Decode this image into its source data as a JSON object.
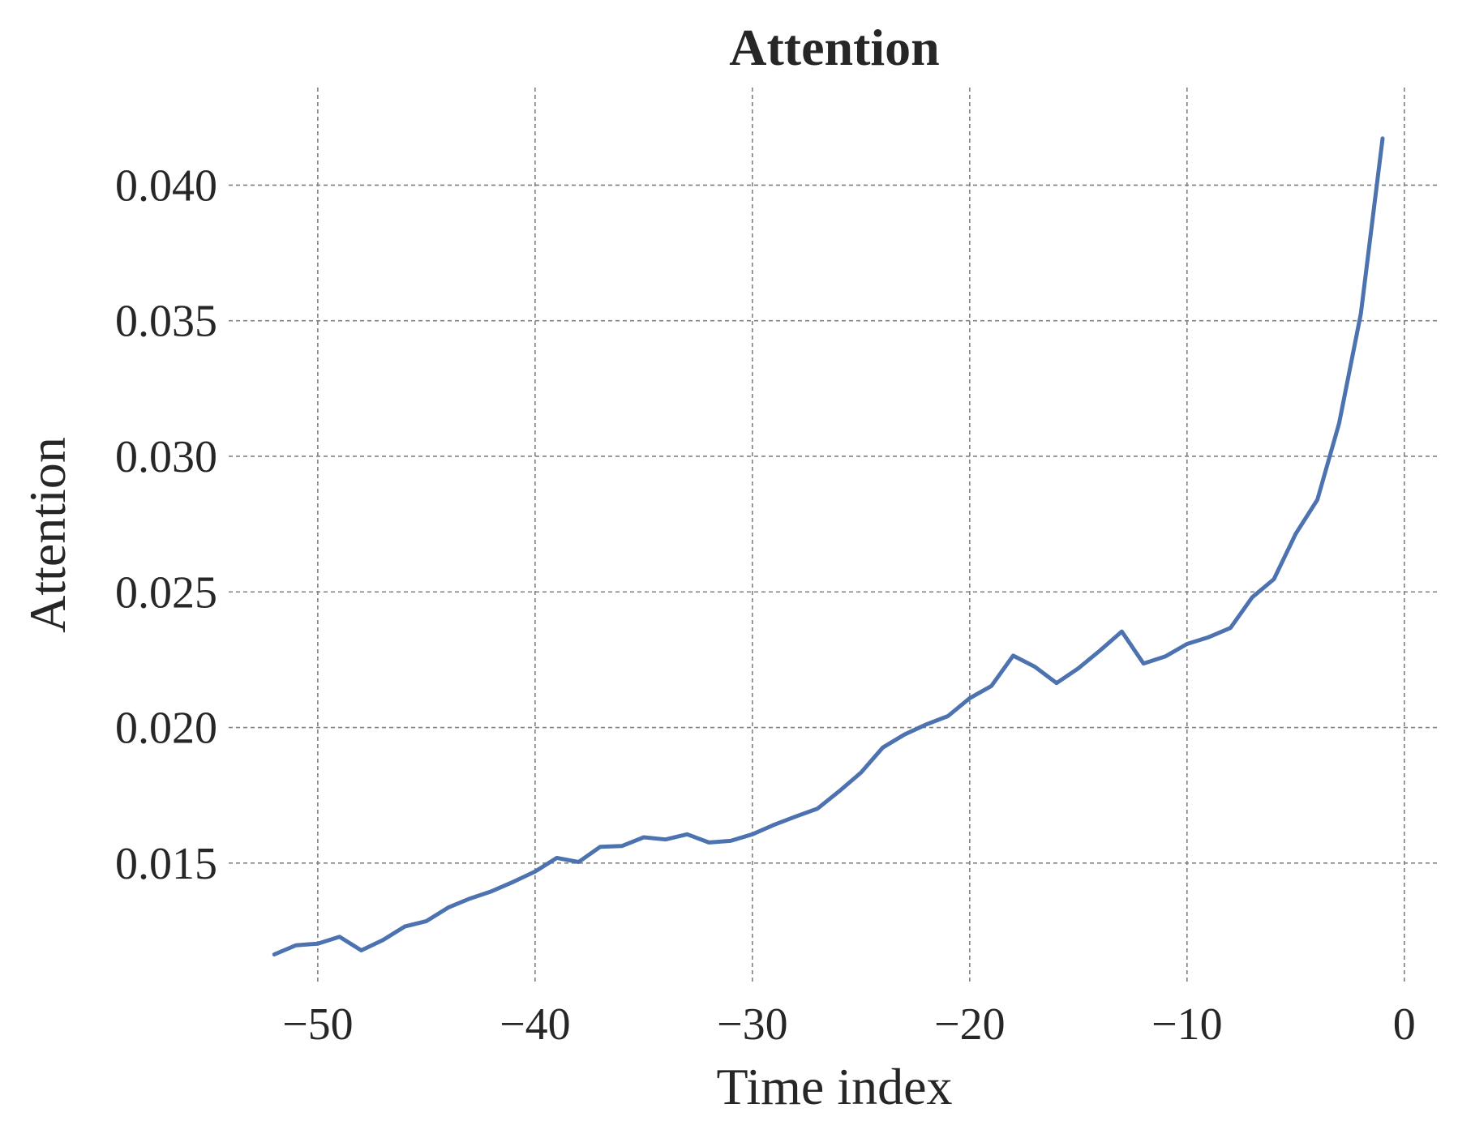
{
  "chart_data": {
    "type": "line",
    "title": "Attention",
    "xlabel": "Time index",
    "ylabel": "Attention",
    "xlim": [
      -54.1,
      1.5
    ],
    "ylim": [
      0.0106,
      0.0436
    ],
    "xticks": [
      -50,
      -40,
      -30,
      -20,
      -10,
      0
    ],
    "xtick_labels": [
      "−50",
      "−40",
      "−30",
      "−20",
      "−10",
      "0"
    ],
    "yticks": [
      0.015,
      0.02,
      0.025,
      0.03,
      0.035,
      0.04
    ],
    "ytick_labels": [
      "0.015",
      "0.020",
      "0.025",
      "0.030",
      "0.035",
      "0.040"
    ],
    "grid": true,
    "series": [
      {
        "color": "#4c72b0",
        "x": [
          -52,
          -51,
          -50,
          -49,
          -48,
          -47,
          -46,
          -45,
          -44,
          -43,
          -42,
          -41,
          -40,
          -39,
          -38,
          -37,
          -36,
          -35,
          -34,
          -33,
          -32,
          -31,
          -30,
          -29,
          -28,
          -27,
          -26,
          -25,
          -24,
          -23,
          -22,
          -21,
          -20,
          -19,
          -18,
          -17,
          -16,
          -15,
          -14,
          -13,
          -12,
          -11,
          -10,
          -9,
          -8,
          -7,
          -6,
          -5,
          -4,
          -3,
          -2,
          -1
        ],
        "y": [
          0.01163,
          0.01197,
          0.01203,
          0.01228,
          0.01178,
          0.01216,
          0.01266,
          0.01286,
          0.01336,
          0.01369,
          0.01396,
          0.01431,
          0.01469,
          0.01519,
          0.01504,
          0.0156,
          0.01563,
          0.01595,
          0.01587,
          0.01606,
          0.01576,
          0.01582,
          0.01606,
          0.01641,
          0.01672,
          0.01701,
          0.01765,
          0.01834,
          0.01926,
          0.01974,
          0.02011,
          0.02042,
          0.02108,
          0.02153,
          0.02265,
          0.02224,
          0.02164,
          0.02218,
          0.02284,
          0.02354,
          0.02236,
          0.02262,
          0.02308,
          0.02333,
          0.02367,
          0.0248,
          0.02547,
          0.02714,
          0.0284,
          0.03122,
          0.03526,
          0.04172
        ]
      }
    ]
  }
}
